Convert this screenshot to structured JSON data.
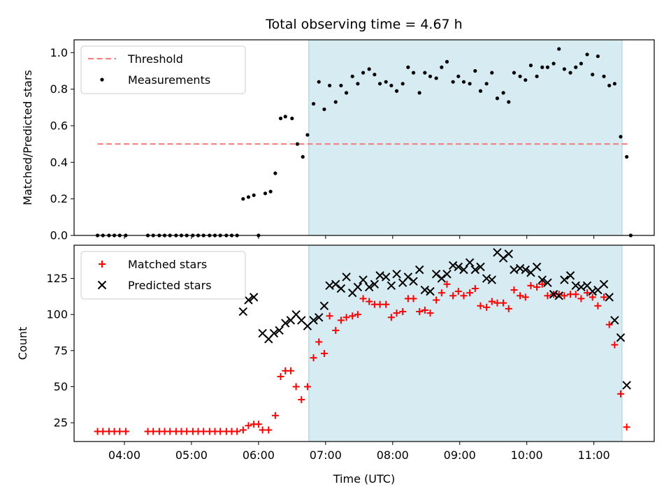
{
  "title": "Total observing time = 4.67 h",
  "chart_data": [
    {
      "type": "scatter",
      "ylabel": "Matched/Predicted stars",
      "xlabel": "",
      "xlim": [
        3.25,
        11.9
      ],
      "ylim": [
        0.0,
        1.07
      ],
      "yticks": [
        0.0,
        0.2,
        0.4,
        0.6,
        0.8,
        1.0
      ],
      "ytick_labels": [
        "0.0",
        "0.2",
        "0.4",
        "0.6",
        "0.8",
        "1.0"
      ],
      "shaded_span": [
        6.75,
        11.42
      ],
      "legend_position": "upper left",
      "series": [
        {
          "name": "Threshold",
          "kind": "dashed-line",
          "color": "#f27b7b",
          "x": [
            3.6,
            11.5
          ],
          "y": [
            0.5,
            0.5
          ]
        },
        {
          "name": "Measurements",
          "kind": "dot",
          "color": "#000000",
          "x": [
            3.6,
            3.68,
            3.77,
            3.85,
            3.93,
            4.02,
            4.35,
            4.43,
            4.52,
            4.6,
            4.68,
            4.77,
            4.85,
            4.93,
            5.02,
            5.1,
            5.18,
            5.27,
            5.35,
            5.43,
            5.52,
            5.6,
            5.68,
            5.77,
            5.85,
            5.93,
            6.0,
            6.1,
            6.18,
            6.25,
            6.33,
            6.4,
            6.5,
            6.58,
            6.66,
            6.73,
            6.82,
            6.9,
            6.98,
            7.06,
            7.15,
            7.23,
            7.31,
            7.4,
            7.48,
            7.56,
            7.65,
            7.73,
            7.81,
            7.9,
            7.98,
            8.06,
            8.15,
            8.23,
            8.31,
            8.4,
            8.48,
            8.56,
            8.65,
            8.73,
            8.81,
            8.9,
            8.98,
            9.06,
            9.15,
            9.23,
            9.31,
            9.4,
            9.48,
            9.56,
            9.65,
            9.73,
            9.81,
            9.9,
            9.98,
            10.06,
            10.15,
            10.23,
            10.31,
            10.4,
            10.48,
            10.56,
            10.65,
            10.73,
            10.81,
            10.9,
            10.98,
            11.06,
            11.15,
            11.23,
            11.31,
            11.4,
            11.49,
            11.55
          ],
          "y": [
            0.0,
            0.0,
            0.0,
            0.0,
            0.0,
            0.0,
            0.0,
            0.0,
            0.0,
            0.0,
            0.0,
            0.0,
            0.0,
            0.0,
            0.0,
            0.0,
            0.0,
            0.0,
            0.0,
            0.0,
            0.0,
            0.0,
            0.0,
            0.2,
            0.21,
            0.22,
            0.0,
            0.23,
            0.24,
            0.34,
            0.64,
            0.65,
            0.64,
            0.5,
            0.43,
            0.55,
            0.72,
            0.84,
            0.69,
            0.82,
            0.73,
            0.82,
            0.78,
            0.87,
            0.83,
            0.89,
            0.91,
            0.88,
            0.83,
            0.84,
            0.82,
            0.79,
            0.83,
            0.92,
            0.89,
            0.78,
            0.89,
            0.87,
            0.86,
            0.92,
            0.95,
            0.84,
            0.87,
            0.84,
            0.83,
            0.9,
            0.79,
            0.83,
            0.89,
            0.75,
            0.78,
            0.73,
            0.89,
            0.87,
            0.85,
            0.93,
            0.87,
            0.92,
            0.92,
            0.94,
            1.02,
            0.91,
            0.89,
            0.92,
            0.94,
            0.99,
            0.88,
            0.98,
            0.87,
            0.82,
            0.83,
            0.54,
            0.43,
            0.0
          ]
        }
      ]
    },
    {
      "type": "scatter",
      "ylabel": "Count",
      "xlabel": "Time (UTC)",
      "xlim": [
        3.25,
        11.9
      ],
      "ylim": [
        12,
        148
      ],
      "yticks": [
        25,
        50,
        75,
        100,
        125
      ],
      "ytick_labels": [
        "25",
        "50",
        "75",
        "100",
        "125"
      ],
      "xticks": [
        4,
        5,
        6,
        7,
        8,
        9,
        10,
        11
      ],
      "xtick_labels": [
        "04:00",
        "05:00",
        "06:00",
        "07:00",
        "08:00",
        "09:00",
        "10:00",
        "11:00"
      ],
      "shaded_span": [
        6.75,
        11.42
      ],
      "legend_position": "upper left",
      "series": [
        {
          "name": "Matched stars",
          "kind": "plus",
          "color": "#ff0000",
          "x": [
            3.6,
            3.68,
            3.77,
            3.85,
            3.93,
            4.02,
            4.35,
            4.43,
            4.52,
            4.6,
            4.68,
            4.77,
            4.85,
            4.93,
            5.02,
            5.1,
            5.18,
            5.27,
            5.35,
            5.43,
            5.52,
            5.6,
            5.68,
            5.77,
            5.85,
            5.93,
            6.0,
            6.06,
            6.15,
            6.25,
            6.33,
            6.4,
            6.48,
            6.56,
            6.64,
            6.73,
            6.82,
            6.9,
            6.98,
            7.06,
            7.15,
            7.23,
            7.31,
            7.4,
            7.48,
            7.56,
            7.65,
            7.73,
            7.81,
            7.9,
            7.98,
            8.06,
            8.15,
            8.23,
            8.31,
            8.4,
            8.48,
            8.56,
            8.65,
            8.73,
            8.81,
            8.9,
            8.98,
            9.06,
            9.15,
            9.23,
            9.31,
            9.4,
            9.48,
            9.56,
            9.65,
            9.73,
            9.81,
            9.9,
            9.98,
            10.06,
            10.15,
            10.23,
            10.31,
            10.4,
            10.48,
            10.56,
            10.65,
            10.73,
            10.81,
            10.9,
            10.98,
            11.06,
            11.15,
            11.23,
            11.31,
            11.4,
            11.49
          ],
          "y": [
            19,
            19,
            19,
            19,
            19,
            19,
            19,
            19,
            19,
            19,
            19,
            19,
            19,
            19,
            19,
            19,
            19,
            19,
            19,
            19,
            19,
            19,
            19,
            20,
            23,
            24,
            24,
            20,
            20,
            30,
            57,
            61,
            61,
            50,
            41,
            50,
            70,
            81,
            73,
            99,
            89,
            96,
            98,
            99,
            100,
            111,
            109,
            107,
            107,
            107,
            98,
            101,
            102,
            111,
            111,
            102,
            103,
            101,
            110,
            115,
            121,
            113,
            116,
            113,
            115,
            118,
            106,
            105,
            109,
            108,
            108,
            104,
            117,
            113,
            112,
            120,
            119,
            121,
            113,
            114,
            114,
            113,
            114,
            114,
            111,
            115,
            112,
            106,
            112,
            93,
            79,
            45,
            22
          ]
        },
        {
          "name": "Predicted stars",
          "kind": "cross",
          "color": "#000000",
          "x": [
            5.77,
            5.85,
            5.93,
            6.06,
            6.15,
            6.23,
            6.31,
            6.4,
            6.48,
            6.56,
            6.64,
            6.73,
            6.82,
            6.9,
            6.98,
            7.06,
            7.15,
            7.23,
            7.31,
            7.4,
            7.48,
            7.56,
            7.65,
            7.73,
            7.81,
            7.9,
            7.98,
            8.06,
            8.15,
            8.23,
            8.31,
            8.4,
            8.48,
            8.56,
            8.65,
            8.73,
            8.81,
            8.9,
            8.98,
            9.06,
            9.15,
            9.23,
            9.31,
            9.4,
            9.48,
            9.56,
            9.65,
            9.73,
            9.81,
            9.9,
            9.98,
            10.06,
            10.15,
            10.23,
            10.31,
            10.4,
            10.48,
            10.56,
            10.65,
            10.73,
            10.81,
            10.9,
            10.98,
            11.06,
            11.15,
            11.23,
            11.31,
            11.4,
            11.49
          ],
          "y": [
            102,
            110,
            112,
            87,
            83,
            87,
            89,
            94,
            96,
            100,
            96,
            92,
            96,
            98,
            106,
            120,
            121,
            118,
            126,
            115,
            119,
            124,
            119,
            121,
            127,
            126,
            120,
            128,
            122,
            126,
            123,
            131,
            117,
            116,
            128,
            125,
            128,
            134,
            133,
            131,
            136,
            131,
            133,
            125,
            124,
            143,
            139,
            142,
            131,
            132,
            131,
            129,
            133,
            124,
            122,
            114,
            113,
            124,
            127,
            120,
            119,
            120,
            116,
            117,
            121,
            112,
            96,
            84,
            51
          ]
        }
      ]
    }
  ]
}
